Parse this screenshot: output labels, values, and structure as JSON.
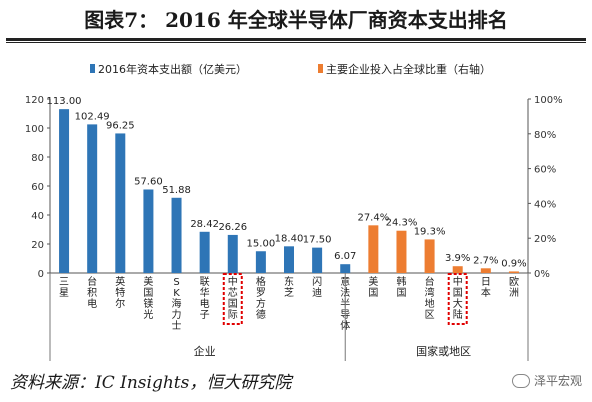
{
  "title": "图表7：  2016 年全球半导体厂商资本支出排名",
  "source": "资料来源：IC Insights，恒大研究院",
  "watermark": "泽平宏观",
  "chart_data": {
    "type": "bar",
    "groups": [
      {
        "label": "企业",
        "start": 0,
        "end": 10
      },
      {
        "label": "国家或地区",
        "start": 11,
        "end": 16
      }
    ],
    "categories": [
      "三星",
      "台积电",
      "英特尔",
      "美国镁光",
      "SK海力士",
      "联华电子",
      "中芯国际",
      "格罗方德",
      "东芝",
      "闪迪",
      "意法半导体",
      "美国",
      "韩国",
      "台湾地区",
      "中国大陆",
      "日本",
      "欧洲"
    ],
    "highlighted": [
      "中芯国际",
      "中国大陆"
    ],
    "series": [
      {
        "name": "2016年资本支出额（亿美元）",
        "axis": "left",
        "color": "#2e75b6",
        "values": [
          113.0,
          102.49,
          96.25,
          57.6,
          51.88,
          28.42,
          26.26,
          15.0,
          18.4,
          17.5,
          6.07,
          null,
          null,
          null,
          null,
          null,
          null
        ],
        "labels": [
          "113.00",
          "102.49",
          "96.25",
          "57.60",
          "51.88",
          "28.42",
          "26.26",
          "15.00",
          "18.40",
          "17.50",
          "6.07",
          "",
          "",
          "",
          "",
          "",
          ""
        ]
      },
      {
        "name": "主要企业投入占全球比重（右轴）",
        "axis": "right",
        "color": "#ed7d31",
        "values": [
          null,
          null,
          null,
          null,
          null,
          null,
          null,
          null,
          null,
          null,
          null,
          27.4,
          24.3,
          19.3,
          3.9,
          2.7,
          0.9
        ],
        "labels": [
          "",
          "",
          "",
          "",
          "",
          "",
          "",
          "",
          "",
          "",
          "",
          "27.4%",
          "24.3%",
          "19.3%",
          "3.9%",
          "2.7%",
          "0.9%"
        ]
      }
    ],
    "y_left": {
      "min": 0,
      "max": 120,
      "ticks": [
        "0",
        "20",
        "40",
        "60",
        "80",
        "100",
        "120"
      ]
    },
    "y_right": {
      "min": 0,
      "max": 100,
      "ticks": [
        "0%",
        "20%",
        "40%",
        "60%",
        "80%",
        "100%"
      ]
    },
    "legend_position": "top",
    "grid": false
  }
}
